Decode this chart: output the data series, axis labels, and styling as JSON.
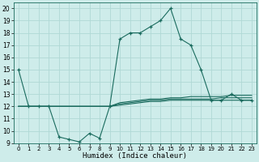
{
  "title": "",
  "xlabel": "Humidex (Indice chaleur)",
  "bg_color": "#ceecea",
  "grid_color": "#b0d8d5",
  "line_color": "#1a6b5e",
  "xlim": [
    -0.5,
    23.5
  ],
  "ylim": [
    9,
    20.5
  ],
  "yticks": [
    9,
    10,
    11,
    12,
    13,
    14,
    15,
    16,
    17,
    18,
    19,
    20
  ],
  "xticks": [
    0,
    1,
    2,
    3,
    4,
    5,
    6,
    7,
    8,
    9,
    10,
    11,
    12,
    13,
    14,
    15,
    16,
    17,
    18,
    19,
    20,
    21,
    22,
    23
  ],
  "main_x": [
    0,
    1,
    2,
    3,
    4,
    5,
    6,
    7,
    8,
    9,
    10,
    11,
    12,
    13,
    14,
    15,
    16,
    17,
    18,
    19,
    20,
    21,
    22,
    23
  ],
  "main_y": [
    15,
    12,
    12,
    12,
    9.5,
    9.3,
    9.1,
    9.8,
    9.4,
    12,
    17.5,
    18,
    18,
    18.5,
    19,
    20,
    17.5,
    17,
    15,
    12.5,
    12.5,
    13,
    12.5,
    12.5
  ],
  "flat1_x": [
    0,
    1,
    2,
    3,
    4,
    5,
    6,
    7,
    8,
    9,
    10,
    11,
    12,
    13,
    14,
    15,
    16,
    17,
    18,
    19,
    20,
    21,
    22,
    23
  ],
  "flat1_y": [
    12,
    12,
    12,
    12,
    12,
    12,
    12,
    12,
    12,
    12,
    12.1,
    12.2,
    12.3,
    12.4,
    12.4,
    12.5,
    12.5,
    12.5,
    12.5,
    12.5,
    12.5,
    12.5,
    12.5,
    12.5
  ],
  "flat2_x": [
    0,
    1,
    2,
    3,
    4,
    5,
    6,
    7,
    8,
    9,
    10,
    11,
    12,
    13,
    14,
    15,
    16,
    17,
    18,
    19,
    20,
    21,
    22,
    23
  ],
  "flat2_y": [
    12,
    12,
    12,
    12,
    12,
    12,
    12,
    12,
    12,
    12,
    12.2,
    12.3,
    12.4,
    12.5,
    12.5,
    12.6,
    12.6,
    12.6,
    12.6,
    12.6,
    12.7,
    12.7,
    12.7,
    12.7
  ],
  "flat3_x": [
    0,
    1,
    2,
    3,
    4,
    5,
    6,
    7,
    8,
    9,
    10,
    11,
    12,
    13,
    14,
    15,
    16,
    17,
    18,
    19,
    20,
    21,
    22,
    23
  ],
  "flat3_y": [
    12,
    12,
    12,
    12,
    12,
    12,
    12,
    12,
    12,
    12,
    12.3,
    12.4,
    12.5,
    12.6,
    12.6,
    12.7,
    12.7,
    12.8,
    12.8,
    12.8,
    12.8,
    12.9,
    12.9,
    12.9
  ]
}
